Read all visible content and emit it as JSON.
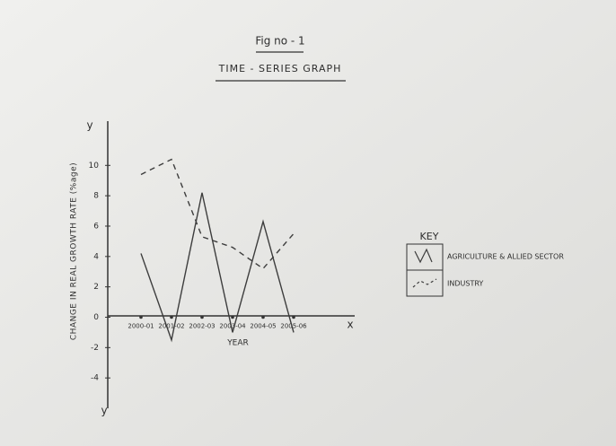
{
  "chart_data": {
    "type": "line",
    "figure_label": "Fig no - 1",
    "title": "TIME - SERIES GRAPH",
    "x_label": "YEAR",
    "y_label": "CHANGE IN REAL GROWTH RATE (%age)",
    "x_axis_letter": "x",
    "y_axis_letter": "y",
    "categories": [
      "2000-01",
      "2001-02",
      "2002-03",
      "2003-04",
      "2004-05",
      "2005-06"
    ],
    "series": [
      {
        "name": "AGRICULTURE & ALLIED SECTOR",
        "color": "#3d3d3d",
        "style": "solid",
        "values": [
          4.2,
          -1.5,
          8.2,
          -1.0,
          6.3,
          -1.0
        ]
      },
      {
        "name": "INDUSTRY",
        "color": "#3d3d3d",
        "style": "dashed",
        "values": [
          9.4,
          10.4,
          5.3,
          4.6,
          3.2,
          5.5
        ]
      }
    ],
    "ylim": [
      -6,
      12.5
    ],
    "yticks": [
      10,
      8,
      6,
      4,
      2,
      0,
      -2,
      -4
    ],
    "legend_title": "KEY",
    "legend_position": "right"
  }
}
